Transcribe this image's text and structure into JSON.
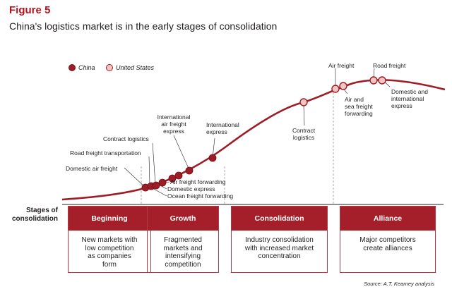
{
  "figure": {
    "label": "Figure 5",
    "title": "China's logistics market is in the early stages of consolidation",
    "source": "Source: A.T. Kearney analysis"
  },
  "legend": {
    "china": "China",
    "us": "United States"
  },
  "colors": {
    "accent": "#b5121b",
    "china_dot": "#9e1c25",
    "us_dot": "#f3c4c4",
    "curve": "#9e1c25",
    "stage_head": "#a51f2a"
  },
  "labels": {
    "domestic_air_freight": "Domestic air freight",
    "road_freight_transportation": "Road freight transportation",
    "contract_logistics_china": "Contract logistics",
    "international_air_freight_express": [
      "International",
      "air freight",
      "express"
    ],
    "international_express": [
      "International",
      "express"
    ],
    "air_freight_forwarding": "Air freight forwarding",
    "domestic_express": "Domestic express",
    "ocean_freight_forwarding": "Ocean freight forwarding",
    "contract_logistics_us": [
      "Contract",
      "logistics"
    ],
    "air_freight": "Air freight",
    "road_freight": "Road freight",
    "air_sea_freight_forwarding": [
      "Air and",
      "sea freight",
      "forwarding"
    ],
    "domestic_international_express": [
      "Domestic and",
      "international",
      "express"
    ]
  },
  "stages_label": [
    "Stages of",
    "consolidation"
  ],
  "stages": [
    {
      "name": "Beginning",
      "desc": [
        "New markets with",
        "low competition",
        "as companies",
        "form"
      ]
    },
    {
      "name": "Growth",
      "desc": [
        "Fragmented",
        "markets and",
        "intensifying",
        "competition"
      ]
    },
    {
      "name": "Consolidation",
      "desc": [
        "Industry consolidation",
        "with increased market",
        "concentration"
      ]
    },
    {
      "name": "Alliance",
      "desc": [
        "Major competitors",
        "create alliances"
      ]
    }
  ]
}
